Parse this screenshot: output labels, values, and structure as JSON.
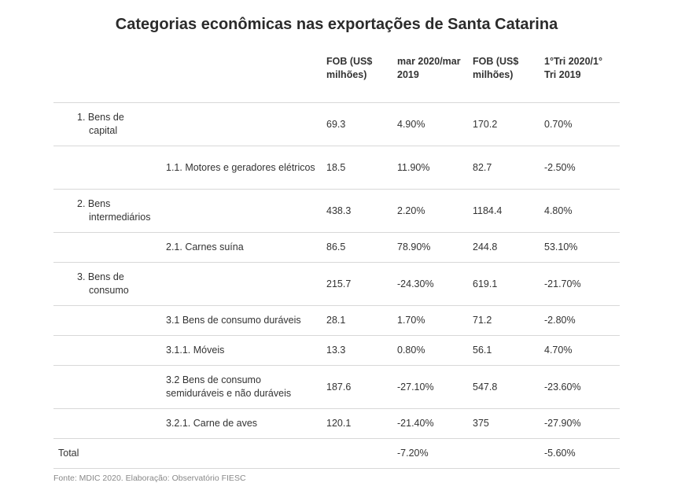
{
  "title": "Categorias econômicas nas exportações de Santa Catarina",
  "source": "Fonte: MDIC 2020. Elaboração: Observatório FIESC",
  "chart_data": {
    "type": "table",
    "columns": [
      "",
      "",
      "FOB (US$ milhões)",
      "mar 2020/mar 2019",
      "FOB (US$ milhões)",
      "1°Tri 2020/1° Tri 2019"
    ],
    "rows": [
      {
        "category": "1. Bens de capital",
        "category_line1": "1. Bens de",
        "category_line2": "capital",
        "subcategory": "",
        "fob_mar": "69.3",
        "var_mar": "4.90%",
        "fob_tri": "170.2",
        "var_tri": "0.70%"
      },
      {
        "category": "",
        "subcategory": "1.1. Motores e geradores elétricos",
        "fob_mar": "18.5",
        "var_mar": "11.90%",
        "fob_tri": "82.7",
        "var_tri": "-2.50%"
      },
      {
        "category": "2. Bens intermediários",
        "category_line1": "2. Bens",
        "category_line2": "intermediários",
        "subcategory": "",
        "fob_mar": "438.3",
        "var_mar": "2.20%",
        "fob_tri": "1184.4",
        "var_tri": "4.80%"
      },
      {
        "category": "",
        "subcategory": "2.1. Carnes suína",
        "fob_mar": "86.5",
        "var_mar": "78.90%",
        "fob_tri": "244.8",
        "var_tri": "53.10%"
      },
      {
        "category": "3. Bens de consumo",
        "category_line1": "3. Bens de",
        "category_line2": "consumo",
        "subcategory": "",
        "fob_mar": "215.7",
        "var_mar": "-24.30%",
        "fob_tri": "619.1",
        "var_tri": "-21.70%"
      },
      {
        "category": "",
        "subcategory": "3.1 Bens de consumo duráveis",
        "fob_mar": "28.1",
        "var_mar": "1.70%",
        "fob_tri": "71.2",
        "var_tri": "-2.80%"
      },
      {
        "category": "",
        "subcategory": "3.1.1. Móveis",
        "fob_mar": "13.3",
        "var_mar": "0.80%",
        "fob_tri": "56.1",
        "var_tri": "4.70%"
      },
      {
        "category": "",
        "subcategory": "3.2 Bens de consumo semiduráveis e não duráveis",
        "fob_mar": "187.6",
        "var_mar": "-27.10%",
        "fob_tri": "547.8",
        "var_tri": "-23.60%"
      },
      {
        "category": "",
        "subcategory": "3.2.1. Carne de aves",
        "fob_mar": "120.1",
        "var_mar": "-21.40%",
        "fob_tri": "375",
        "var_tri": "-27.90%"
      },
      {
        "category": "Total",
        "subcategory": "",
        "fob_mar": "",
        "var_mar": "-7.20%",
        "fob_tri": "",
        "var_tri": "-5.60%"
      }
    ]
  }
}
